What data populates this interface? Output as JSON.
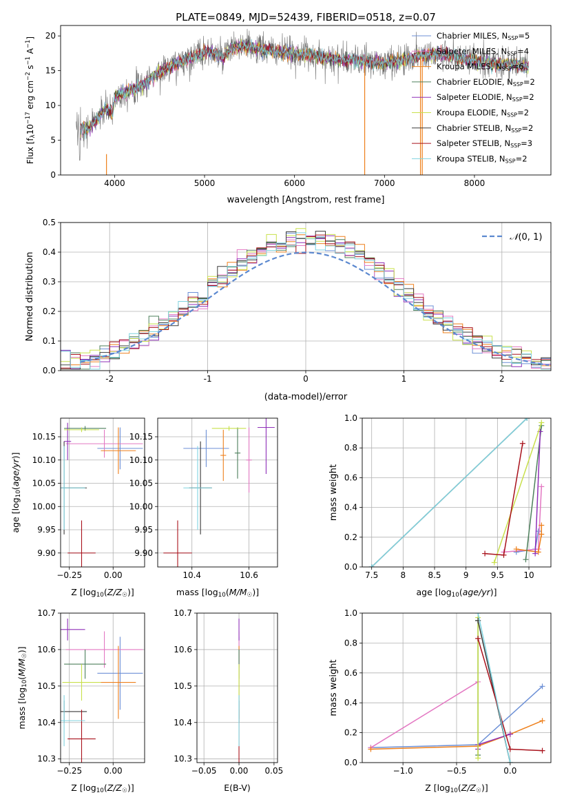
{
  "figure_title": "PLATE=0849, MJD=52439, FIBERID=0518, z=0.07",
  "colors": {
    "chabrier_miles": "#6b8fd6",
    "salpeter_miles": "#e377c2",
    "kroupa_miles": "#ee7f1a",
    "chabrier_elodie": "#4c7f5b",
    "salpeter_elodie": "#8f2fb8",
    "kroupa_elodie": "#c8e04a",
    "chabrier_stelib": "#3a3a3a",
    "salpeter_stelib": "#a8101a",
    "kroupa_stelib": "#7fd3df",
    "data": "#6e6e6e",
    "gaussian": "#5b88cf",
    "grid": "#b0b0b0"
  },
  "chart_data": [
    {
      "id": "spectrum",
      "type": "line",
      "xlabel": "wavelength [Angstrom, rest frame]",
      "ylabel": "Flux [f_λ 10^-17 erg cm^-2 s^-1 A^-1]",
      "xlim": [
        3400,
        8850
      ],
      "ylim": [
        0,
        21.5
      ],
      "xticks": [
        4000,
        5000,
        6000,
        7000,
        8000
      ],
      "yticks": [
        0,
        5,
        10,
        15,
        20
      ],
      "grid": false,
      "legend_position": "top-right",
      "continuum": {
        "x": [
          3580,
          3650,
          3700,
          3800,
          3900,
          3980,
          4000,
          4100,
          4200,
          4300,
          4400,
          4500,
          4600,
          4700,
          4800,
          4900,
          5000,
          5100,
          5200,
          5300,
          5400,
          5500,
          5600,
          5700,
          5800,
          5900,
          6000,
          6100,
          6200,
          6300,
          6400,
          6500,
          6600,
          6700,
          6800,
          6900,
          7000,
          7100,
          7200,
          7300,
          7400,
          7500,
          7600,
          7700,
          7800,
          7900,
          8000,
          8100,
          8200,
          8300,
          8400,
          8500,
          8600
        ],
        "y": [
          5.8,
          7.0,
          6.5,
          8.0,
          9.5,
          9.0,
          11.3,
          11.8,
          12.5,
          12.8,
          14.0,
          14.8,
          15.5,
          16.0,
          16.6,
          17.2,
          17.8,
          17.6,
          16.8,
          18.2,
          18.5,
          18.4,
          18.1,
          18.0,
          17.7,
          17.6,
          17.5,
          17.4,
          17.2,
          17.0,
          16.8,
          16.6,
          16.5,
          16.4,
          16.3,
          16.2,
          16.1,
          16.3,
          16.5,
          16.9,
          17.2,
          17.4,
          17.5,
          17.2,
          16.9,
          16.6,
          16.4,
          16.3,
          16.1,
          16.0,
          15.9,
          15.7,
          15.5
        ]
      },
      "legend": [
        "Chabrier MILES, N_SSP=5",
        "Salpeter MILES, N_SSP=4",
        "Kroupa MILES, N_SSP=6",
        "Chabrier ELODIE, N_SSP=2",
        "Salpeter ELODIE, N_SSP=2",
        "Kroupa ELODIE, N_SSP=2",
        "Chabrier STELIB, N_SSP=2",
        "Salpeter STELIB, N_SSP=3",
        "Kroupa STELIB, N_SSP=2"
      ]
    },
    {
      "id": "residuals",
      "type": "bar",
      "xlabel": "(data-model)/error",
      "ylabel": "Normed distribution",
      "xlim": [
        -2.5,
        2.5
      ],
      "ylim": [
        0,
        0.5
      ],
      "xticks": [
        -2,
        -1,
        0,
        1,
        2
      ],
      "yticks": [
        0.0,
        0.1,
        0.2,
        0.3,
        0.4,
        0.5
      ],
      "grid": true,
      "legend": "N(0,1)",
      "legend_position": "top-right",
      "bin_width": 0.1
    },
    {
      "id": "age_vs_Z",
      "type": "scatter",
      "xlabel": "Z [log10(Z/Z☉)]",
      "ylabel": "age [log10(age/yr)]",
      "xlim": [
        -0.3,
        0.18
      ],
      "ylim": [
        9.87,
        10.19
      ],
      "xticks": [
        -0.25,
        0.0
      ],
      "xtick_labels": [
        "−0.25",
        "0.00"
      ],
      "yticks": [
        9.9,
        9.95,
        10.0,
        10.05,
        10.1,
        10.15
      ],
      "grid": true,
      "points": [
        {
          "model": "chabrier_miles",
          "x": 0.04,
          "y": 10.125,
          "xerr": 0.13,
          "yerr": 0.045
        },
        {
          "model": "salpeter_miles",
          "x": -0.05,
          "y": 10.135,
          "xerr": 0.22,
          "yerr": 0.03
        },
        {
          "model": "kroupa_miles",
          "x": 0.03,
          "y": 10.12,
          "xerr": 0.1,
          "yerr": 0.05
        },
        {
          "model": "chabrier_elodie",
          "x": -0.16,
          "y": 10.168,
          "xerr": 0.12,
          "yerr": 0.005
        },
        {
          "model": "salpeter_elodie",
          "x": -0.26,
          "y": 10.14,
          "xerr": 0.02,
          "yerr": 0.04
        },
        {
          "model": "kroupa_elodie",
          "x": -0.18,
          "y": 10.165,
          "xerr": 0.1,
          "yerr": 0.005
        },
        {
          "model": "chabrier_stelib",
          "x": -0.28,
          "y": 10.04,
          "xerr": 0.13,
          "yerr": 0.1
        },
        {
          "model": "salpeter_stelib",
          "x": -0.18,
          "y": 9.9,
          "xerr": 0.08,
          "yerr": 0.07
        },
        {
          "model": "kroupa_stelib",
          "x": -0.28,
          "y": 10.04,
          "xerr": 0.12,
          "yerr": 0.09
        }
      ]
    },
    {
      "id": "age_vs_mass",
      "type": "scatter",
      "xlabel": "mass [log10(M/M☉)]",
      "ylabel": "",
      "xlim": [
        10.28,
        10.7
      ],
      "ylim": [
        9.87,
        10.19
      ],
      "xticks": [
        10.4,
        10.6
      ],
      "yticks": [
        9.9,
        9.95,
        10.0,
        10.05,
        10.1,
        10.15
      ],
      "grid": true,
      "points": [
        {
          "model": "chabrier_miles",
          "x": 10.45,
          "y": 10.125,
          "xerr": 0.08,
          "yerr": 0.04
        },
        {
          "model": "salpeter_miles",
          "x": 10.6,
          "y": 10.1,
          "xerr": 0.01,
          "yerr": 0.07
        },
        {
          "model": "kroupa_miles",
          "x": 10.51,
          "y": 10.11,
          "xerr": 0.01,
          "yerr": 0.055
        },
        {
          "model": "chabrier_elodie",
          "x": 10.56,
          "y": 10.115,
          "xerr": 0.01,
          "yerr": 0.055
        },
        {
          "model": "salpeter_elodie",
          "x": 10.66,
          "y": 10.17,
          "xerr": 0.03,
          "yerr": 0.1
        },
        {
          "model": "kroupa_elodie",
          "x": 10.53,
          "y": 10.168,
          "xerr": 0.06,
          "yerr": 0.005
        },
        {
          "model": "chabrier_stelib",
          "x": 10.43,
          "y": 10.04,
          "xerr": 0.04,
          "yerr": 0.1
        },
        {
          "model": "salpeter_stelib",
          "x": 10.35,
          "y": 9.9,
          "xerr": 0.05,
          "yerr": 0.07
        },
        {
          "model": "kroupa_stelib",
          "x": 10.42,
          "y": 10.04,
          "xerr": 0.05,
          "yerr": 0.09
        }
      ]
    },
    {
      "id": "weight_vs_age",
      "type": "line",
      "xlabel": "age [log10(age/yr)]",
      "ylabel": "mass weight",
      "xlim": [
        7.35,
        10.35
      ],
      "ylim": [
        0,
        1
      ],
      "xticks": [
        7.5,
        8.0,
        8.5,
        9.0,
        9.5,
        10.0
      ],
      "yticks": [
        0.0,
        0.2,
        0.4,
        0.6,
        0.8,
        1.0
      ],
      "grid": true,
      "series": [
        {
          "model": "chabrier_miles",
          "x": [
            9.8,
            10.1,
            10.15
          ],
          "y": [
            0.1,
            0.12,
            0.24
          ]
        },
        {
          "model": "salpeter_miles",
          "x": [
            9.6,
            10.15,
            10.2
          ],
          "y": [
            0.1,
            0.12,
            0.54
          ]
        },
        {
          "model": "kroupa_miles",
          "x": [
            9.8,
            10.15,
            10.2,
            10.2
          ],
          "y": [
            0.12,
            0.1,
            0.22,
            0.28
          ]
        },
        {
          "model": "chabrier_elodie",
          "x": [
            9.95,
            10.2
          ],
          "y": [
            0.05,
            0.95
          ]
        },
        {
          "model": "salpeter_elodie",
          "x": [
            10.1,
            10.18
          ],
          "y": [
            0.09,
            0.91
          ]
        },
        {
          "model": "kroupa_elodie",
          "x": [
            9.45,
            10.2
          ],
          "y": [
            0.03,
            0.97
          ]
        },
        {
          "model": "chabrier_stelib",
          "x": [
            7.5,
            9.97
          ],
          "y": [
            0.0,
            1.0
          ]
        },
        {
          "model": "salpeter_stelib",
          "x": [
            9.3,
            9.6,
            9.9
          ],
          "y": [
            0.09,
            0.08,
            0.83
          ]
        },
        {
          "model": "kroupa_stelib",
          "x": [
            7.5,
            9.97
          ],
          "y": [
            0.0,
            1.0
          ]
        }
      ]
    },
    {
      "id": "mass_vs_Z",
      "type": "scatter",
      "xlabel": "Z [log10(Z/Z☉)]",
      "ylabel": "mass [log10(M/M☉)]",
      "xlim": [
        -0.3,
        0.18
      ],
      "ylim": [
        10.29,
        10.7
      ],
      "xticks": [
        -0.25,
        0.0
      ],
      "xtick_labels": [
        "−0.25",
        "0.00"
      ],
      "yticks": [
        10.3,
        10.4,
        10.5,
        10.6,
        10.7
      ],
      "grid": true,
      "points": [
        {
          "model": "chabrier_miles",
          "x": 0.04,
          "y": 10.535,
          "xerr": 0.13,
          "yerr": 0.1
        },
        {
          "model": "salpeter_miles",
          "x": -0.05,
          "y": 10.6,
          "xerr": 0.22,
          "yerr": 0.05
        },
        {
          "model": "kroupa_miles",
          "x": 0.03,
          "y": 10.51,
          "xerr": 0.1,
          "yerr": 0.1
        },
        {
          "model": "chabrier_elodie",
          "x": -0.16,
          "y": 10.56,
          "xerr": 0.12,
          "yerr": 0.04
        },
        {
          "model": "salpeter_elodie",
          "x": -0.26,
          "y": 10.655,
          "xerr": 0.1,
          "yerr": 0.03
        },
        {
          "model": "kroupa_elodie",
          "x": -0.18,
          "y": 10.51,
          "xerr": 0.11,
          "yerr": 0.05
        },
        {
          "model": "chabrier_stelib",
          "x": -0.28,
          "y": 10.43,
          "xerr": 0.13,
          "yerr": 0.03
        },
        {
          "model": "salpeter_stelib",
          "x": -0.18,
          "y": 10.355,
          "xerr": 0.08,
          "yerr": 0.08
        },
        {
          "model": "kroupa_stelib",
          "x": -0.28,
          "y": 10.405,
          "xerr": 0.12,
          "yerr": 0.07
        }
      ]
    },
    {
      "id": "mass_vs_ebv",
      "type": "scatter",
      "xlabel": "E(B-V)",
      "ylabel": "",
      "xlim": [
        -0.06,
        0.055
      ],
      "ylim": [
        10.29,
        10.7
      ],
      "xticks": [
        -0.05,
        0.0,
        0.05
      ],
      "xtick_labels": [
        "−0.05",
        "0.00",
        "0.05"
      ],
      "yticks": [
        10.3,
        10.4,
        10.5,
        10.6,
        10.7
      ],
      "grid": true,
      "points": [
        {
          "model": "chabrier_miles",
          "x": 0.0,
          "y": 10.535,
          "xerr": 0,
          "yerr": 0.1
        },
        {
          "model": "salpeter_miles",
          "x": 0.0,
          "y": 10.6,
          "xerr": 0,
          "yerr": 0.05
        },
        {
          "model": "kroupa_miles",
          "x": 0.0,
          "y": 10.51,
          "xerr": 0,
          "yerr": 0.1
        },
        {
          "model": "chabrier_elodie",
          "x": 0.0,
          "y": 10.56,
          "xerr": 0,
          "yerr": 0.04
        },
        {
          "model": "salpeter_elodie",
          "x": 0.0,
          "y": 10.655,
          "xerr": 0,
          "yerr": 0.03
        },
        {
          "model": "kroupa_elodie",
          "x": 0.0,
          "y": 10.51,
          "xerr": 0,
          "yerr": 0.05
        },
        {
          "model": "chabrier_stelib",
          "x": 0.0,
          "y": 10.43,
          "xerr": 0,
          "yerr": 0.03
        },
        {
          "model": "salpeter_stelib",
          "x": 0.0,
          "y": 10.355,
          "xerr": 0,
          "yerr": 0.08
        },
        {
          "model": "kroupa_stelib",
          "x": 0.0,
          "y": 10.405,
          "xerr": 0,
          "yerr": 0.07
        }
      ]
    },
    {
      "id": "weight_vs_Z",
      "type": "line",
      "xlabel": "Z [log10(Z/Z☉)]",
      "ylabel": "mass weight",
      "xlim": [
        -1.38,
        0.38
      ],
      "ylim": [
        0,
        1
      ],
      "xticks": [
        -1.0,
        -0.5,
        0.0
      ],
      "xtick_labels": [
        "−1.0",
        "−0.5",
        "0.0"
      ],
      "yticks": [
        0.0,
        0.2,
        0.4,
        0.6,
        0.8,
        1.0
      ],
      "grid": true,
      "series": [
        {
          "model": "chabrier_miles",
          "x": [
            -1.3,
            -0.3,
            0.3
          ],
          "y": [
            0.1,
            0.12,
            0.51
          ]
        },
        {
          "model": "salpeter_miles",
          "x": [
            -1.3,
            -0.3
          ],
          "y": [
            0.1,
            0.54
          ]
        },
        {
          "model": "kroupa_miles",
          "x": [
            -1.3,
            -0.3,
            0.0,
            0.3
          ],
          "y": [
            0.09,
            0.11,
            0.19,
            0.28
          ]
        },
        {
          "model": "chabrier_elodie",
          "x": [
            -0.3,
            -0.3
          ],
          "y": [
            0.05,
            0.95
          ]
        },
        {
          "model": "salpeter_elodie",
          "x": [
            -0.3,
            -0.3,
            0.0
          ],
          "y": [
            0.09,
            0.12,
            0.19
          ]
        },
        {
          "model": "kroupa_elodie",
          "x": [
            -0.3,
            -0.3
          ],
          "y": [
            0.03,
            0.97
          ]
        },
        {
          "model": "chabrier_stelib",
          "x": [
            -0.3,
            0.0
          ],
          "y": [
            0.95,
            0.0
          ]
        },
        {
          "model": "salpeter_stelib",
          "x": [
            -0.3,
            0.0,
            0.3
          ],
          "y": [
            0.83,
            0.09,
            0.08
          ]
        },
        {
          "model": "kroupa_stelib",
          "x": [
            -0.3,
            0.0
          ],
          "y": [
            1.0,
            0.0
          ]
        }
      ]
    }
  ]
}
